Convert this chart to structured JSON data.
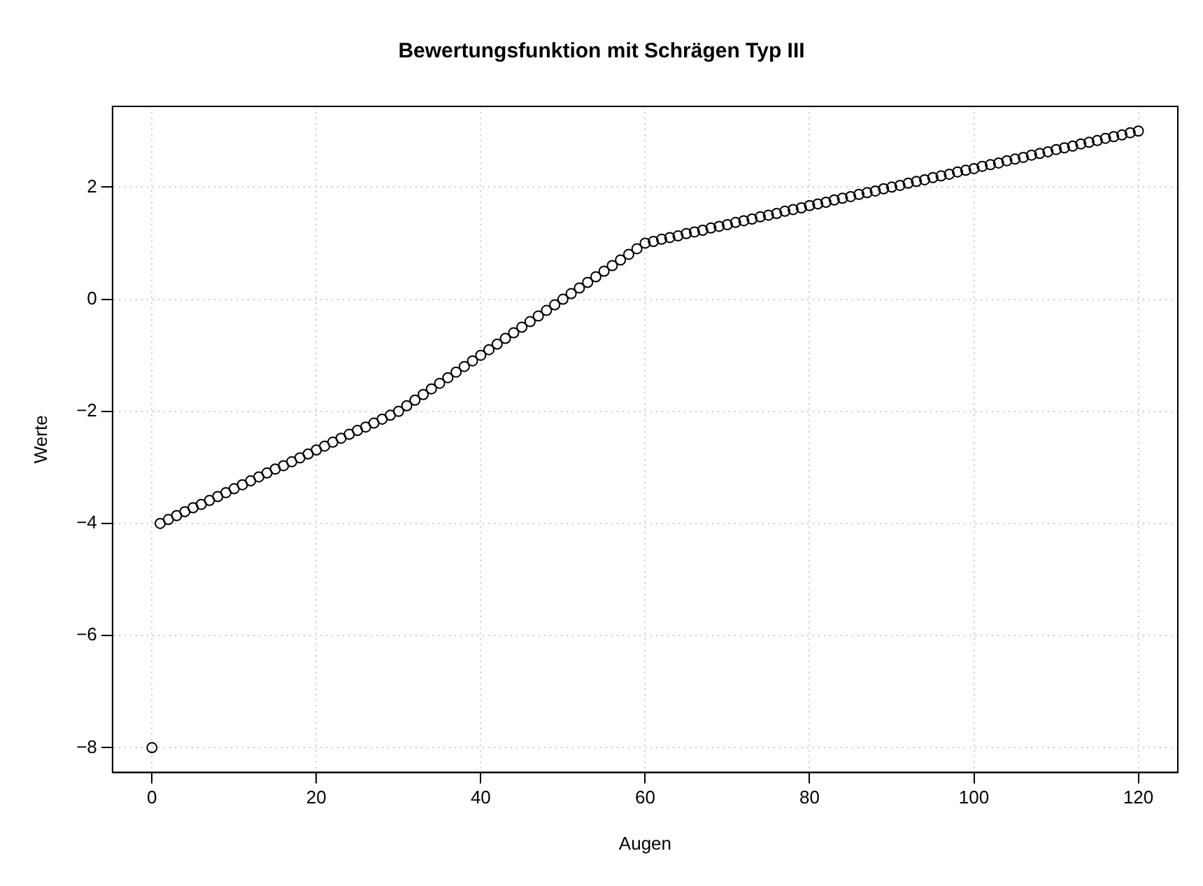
{
  "chart_data": {
    "type": "scatter",
    "title": "Bewertungsfunktion mit Schrägen Typ III",
    "xlabel": "Augen",
    "ylabel": "Werte",
    "x": [
      0,
      1,
      2,
      3,
      4,
      5,
      6,
      7,
      8,
      9,
      10,
      11,
      12,
      13,
      14,
      15,
      16,
      17,
      18,
      19,
      20,
      21,
      22,
      23,
      24,
      25,
      26,
      27,
      28,
      29,
      30,
      31,
      32,
      33,
      34,
      35,
      36,
      37,
      38,
      39,
      40,
      41,
      42,
      43,
      44,
      45,
      46,
      47,
      48,
      49,
      50,
      51,
      52,
      53,
      54,
      55,
      56,
      57,
      58,
      59,
      60,
      61,
      62,
      63,
      64,
      65,
      66,
      67,
      68,
      69,
      70,
      71,
      72,
      73,
      74,
      75,
      76,
      77,
      78,
      79,
      80,
      81,
      82,
      83,
      84,
      85,
      86,
      87,
      88,
      89,
      90,
      91,
      92,
      93,
      94,
      95,
      96,
      97,
      98,
      99,
      100,
      101,
      102,
      103,
      104,
      105,
      106,
      107,
      108,
      109,
      110,
      111,
      112,
      113,
      114,
      115,
      116,
      117,
      118,
      119,
      120
    ],
    "values": [
      -8,
      -4.0,
      -3.93,
      -3.86,
      -3.79,
      -3.72,
      -3.66,
      -3.59,
      -3.52,
      -3.45,
      -3.38,
      -3.31,
      -3.24,
      -3.17,
      -3.1,
      -3.03,
      -2.97,
      -2.9,
      -2.83,
      -2.76,
      -2.69,
      -2.62,
      -2.55,
      -2.48,
      -2.41,
      -2.34,
      -2.28,
      -2.21,
      -2.14,
      -2.07,
      -2.0,
      -1.9,
      -1.8,
      -1.7,
      -1.6,
      -1.5,
      -1.4,
      -1.3,
      -1.2,
      -1.1,
      -1.0,
      -0.9,
      -0.8,
      -0.7,
      -0.6,
      -0.5,
      -0.4,
      -0.3,
      -0.2,
      -0.1,
      0,
      0.1,
      0.2,
      0.3,
      0.4,
      0.5,
      0.6,
      0.7,
      0.8,
      0.9,
      1.0,
      1.03,
      1.07,
      1.1,
      1.13,
      1.17,
      1.2,
      1.23,
      1.27,
      1.3,
      1.33,
      1.37,
      1.4,
      1.43,
      1.47,
      1.5,
      1.53,
      1.57,
      1.6,
      1.63,
      1.67,
      1.7,
      1.73,
      1.77,
      1.8,
      1.83,
      1.87,
      1.9,
      1.93,
      1.97,
      2.0,
      2.03,
      2.07,
      2.1,
      2.13,
      2.17,
      2.2,
      2.23,
      2.27,
      2.3,
      2.33,
      2.37,
      2.4,
      2.43,
      2.47,
      2.5,
      2.53,
      2.57,
      2.6,
      2.63,
      2.67,
      2.7,
      2.73,
      2.77,
      2.8,
      2.83,
      2.87,
      2.9,
      2.93,
      2.97,
      3.0
    ],
    "color": "#000000",
    "marker": "circle",
    "grid": true,
    "legend": false,
    "xlim": [
      -4.8,
      124.8
    ],
    "xticks": [
      0,
      20,
      40,
      60,
      80,
      100,
      120
    ],
    "ylim": [
      -8.44,
      3.44
    ],
    "yticks": [
      {
        "value": -8,
        "label": "−8"
      },
      {
        "value": -6,
        "label": "−6"
      },
      {
        "value": -4,
        "label": "−4"
      },
      {
        "value": -2,
        "label": "−2"
      },
      0,
      2
    ]
  }
}
